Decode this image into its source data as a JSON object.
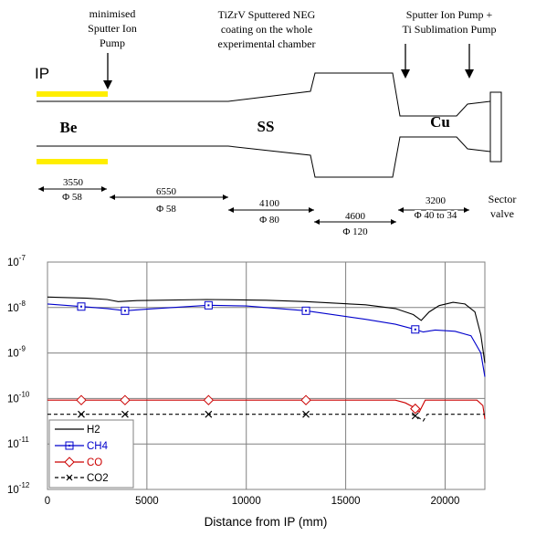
{
  "diagram": {
    "ip_label": "IP",
    "annot_pump_left": [
      "minimised",
      "Sputter Ion",
      "Pump"
    ],
    "annot_neg": [
      "TiZrV Sputtered NEG",
      "coating on the whole",
      "experimental chamber"
    ],
    "annot_pump_right": [
      "Sputter Ion Pump +",
      "Ti Sublimation Pump"
    ],
    "section_be": "Be",
    "section_ss": "SS",
    "section_cu": "Cu",
    "dims": [
      {
        "length": "3550",
        "diameter": "Φ 58"
      },
      {
        "length": "6550",
        "diameter": "Φ 58"
      },
      {
        "length": "4100",
        "diameter": "Φ 80"
      },
      {
        "length": "4600",
        "diameter": "Φ 120"
      },
      {
        "length": "3200",
        "diameter": "Φ 40 to 34"
      }
    ],
    "sector_valve": [
      "Sector",
      "valve"
    ],
    "colors": {
      "highlight": "#ffee00",
      "outline": "#000000"
    }
  },
  "chart_data": {
    "type": "line",
    "xlabel": "Distance from IP (mm)",
    "ylabel": "",
    "xlim": [
      0,
      22000
    ],
    "ylim": [
      1e-12,
      1e-07
    ],
    "yscale": "log",
    "x_ticks": [
      0,
      5000,
      10000,
      15000,
      20000
    ],
    "x_tick_labels": [
      "0",
      "5000",
      "10000",
      "15000",
      "20000"
    ],
    "y_ticks": [
      1e-12,
      1e-11,
      1e-10,
      1e-09,
      1e-08,
      1e-07
    ],
    "y_tick_labels": [
      [
        "10",
        "-12"
      ],
      [
        "10",
        "-11"
      ],
      [
        "10",
        "-10"
      ],
      [
        "10",
        "-9"
      ],
      [
        "10",
        "-8"
      ],
      [
        "10",
        "-7"
      ]
    ],
    "grid": true,
    "legend": "bottom-left",
    "series": [
      {
        "name": "H2",
        "color": "#000000",
        "marker": "none",
        "dash": "none",
        "points": [
          [
            0,
            1.7e-08
          ],
          [
            2000,
            1.6e-08
          ],
          [
            3000,
            1.5e-08
          ],
          [
            3550,
            1.35e-08
          ],
          [
            4500,
            1.42e-08
          ],
          [
            8000,
            1.5e-08
          ],
          [
            11000,
            1.45e-08
          ],
          [
            13000,
            1.35e-08
          ],
          [
            16000,
            1.15e-08
          ],
          [
            17500,
            9.5e-09
          ],
          [
            18400,
            7e-09
          ],
          [
            18800,
            5.2e-09
          ],
          [
            19200,
            8e-09
          ],
          [
            19700,
            1.1e-08
          ],
          [
            20400,
            1.3e-08
          ],
          [
            21000,
            1.2e-08
          ],
          [
            21500,
            8e-09
          ],
          [
            21800,
            2.5e-09
          ],
          [
            22000,
            6e-10
          ]
        ]
      },
      {
        "name": "CH4",
        "color": "#0000cc",
        "marker": "square",
        "dash": "none",
        "points": [
          [
            0,
            1.2e-08
          ],
          [
            1700,
            1.05e-08
          ],
          [
            3000,
            9.5e-09
          ],
          [
            3900,
            8.5e-09
          ],
          [
            5000,
            9.2e-09
          ],
          [
            8100,
            1.12e-08
          ],
          [
            10000,
            1.08e-08
          ],
          [
            13000,
            8.5e-09
          ],
          [
            16000,
            5.5e-09
          ],
          [
            17500,
            4.3e-09
          ],
          [
            18500,
            3.3e-09
          ],
          [
            18900,
            2.9e-09
          ],
          [
            19500,
            3.2e-09
          ],
          [
            20500,
            3e-09
          ],
          [
            21300,
            2.4e-09
          ],
          [
            21800,
            1e-09
          ],
          [
            22000,
            3e-10
          ]
        ],
        "markers_at": [
          1700,
          3900,
          8100,
          13000,
          18500
        ]
      },
      {
        "name": "CO",
        "color": "#cc0000",
        "marker": "diamond",
        "dash": "none",
        "points": [
          [
            0,
            9.2e-11
          ],
          [
            17500,
            9.2e-11
          ],
          [
            18000,
            8e-11
          ],
          [
            18400,
            6.5e-11
          ],
          [
            18700,
            5e-11
          ],
          [
            19000,
            9.2e-11
          ],
          [
            21600,
            9.2e-11
          ],
          [
            21900,
            7e-11
          ],
          [
            22000,
            3.5e-11
          ]
        ],
        "markers_at": [
          1700,
          3900,
          8100,
          13000,
          18500
        ]
      },
      {
        "name": "CO2",
        "color": "#000000",
        "marker": "x",
        "dash": "dashed",
        "points": [
          [
            0,
            4.5e-11
          ],
          [
            18300,
            4.5e-11
          ],
          [
            18600,
            4e-11
          ],
          [
            18900,
            3.2e-11
          ],
          [
            19100,
            4.5e-11
          ],
          [
            22000,
            4.5e-11
          ]
        ],
        "markers_at": [
          1700,
          3900,
          8100,
          13000,
          18500
        ]
      }
    ]
  }
}
